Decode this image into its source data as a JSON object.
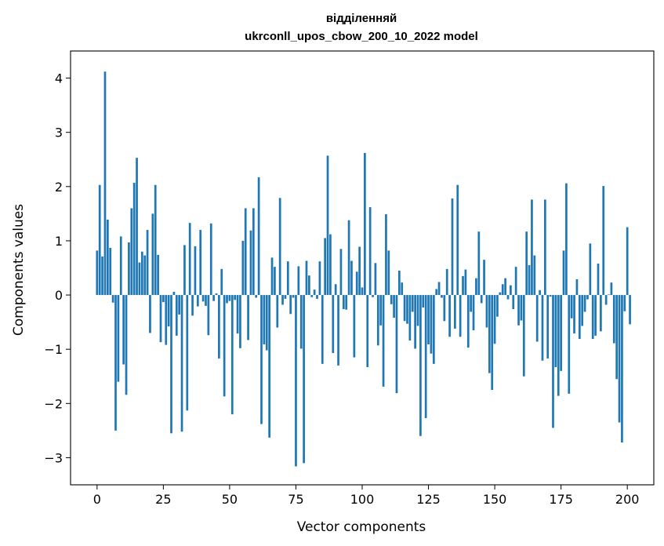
{
  "chart_data": {
    "type": "bar",
    "title_lines": [
      "відділенняй",
      "ukrconll_upos_cbow_200_10_2022 model"
    ],
    "xlabel": "Vector components",
    "ylabel": "Components values",
    "xlim": [
      -10,
      210
    ],
    "ylim": [
      -3.5,
      4.5
    ],
    "x_ticks": [
      0,
      25,
      50,
      75,
      100,
      125,
      150,
      175,
      200
    ],
    "y_ticks": [
      -3,
      -2,
      -1,
      0,
      1,
      2,
      3,
      4
    ],
    "bar_color": "#1f77b4",
    "grid": false,
    "legend": "none",
    "values": [
      0.82,
      2.03,
      0.71,
      4.12,
      1.39,
      0.87,
      -0.14,
      -2.5,
      -1.6,
      1.08,
      -1.28,
      -1.84,
      0.97,
      1.6,
      2.07,
      2.53,
      0.6,
      0.8,
      0.73,
      1.2,
      -0.7,
      1.5,
      2.03,
      0.74,
      -0.87,
      -0.13,
      -0.92,
      -0.58,
      -2.55,
      0.06,
      -0.75,
      -0.36,
      -2.52,
      0.92,
      -2.13,
      1.33,
      -0.38,
      0.9,
      -0.21,
      1.2,
      -0.12,
      -0.2,
      -0.74,
      1.32,
      -0.11,
      0.03,
      -1.17,
      0.48,
      -1.87,
      -0.15,
      -0.11,
      -2.2,
      -0.09,
      -0.71,
      -0.98,
      1.0,
      1.6,
      -0.83,
      1.19,
      1.6,
      -0.05,
      2.17,
      -2.38,
      -0.91,
      -1.02,
      -2.63,
      0.69,
      0.52,
      -0.6,
      1.79,
      -0.18,
      -0.07,
      0.62,
      -0.35,
      -0.05,
      -3.16,
      0.53,
      -0.99,
      -3.1,
      0.63,
      0.36,
      -0.04,
      0.1,
      -0.07,
      0.62,
      -1.27,
      1.05,
      2.57,
      1.12,
      -1.07,
      0.2,
      -1.3,
      0.85,
      -0.26,
      -0.27,
      1.38,
      0.63,
      -1.15,
      0.43,
      0.89,
      0.14,
      2.62,
      -1.33,
      1.62,
      -0.04,
      0.59,
      -0.93,
      -0.56,
      -1.69,
      1.49,
      0.82,
      -0.17,
      -0.42,
      -1.81,
      0.45,
      0.23,
      -0.48,
      -0.53,
      -0.84,
      -0.31,
      -0.99,
      -0.57,
      -2.6,
      -0.23,
      -2.27,
      -0.91,
      -1.08,
      -1.27,
      0.11,
      0.24,
      -0.05,
      -0.48,
      0.48,
      -0.77,
      1.78,
      -0.62,
      2.03,
      -0.77,
      0.35,
      0.47,
      -0.97,
      -0.31,
      -0.65,
      0.31,
      1.17,
      -0.15,
      0.65,
      -0.6,
      -1.44,
      -1.75,
      -0.9,
      -0.4,
      0.05,
      0.2,
      0.31,
      -0.08,
      0.18,
      -0.26,
      0.52,
      -0.56,
      -0.47,
      -1.5,
      1.17,
      0.55,
      1.76,
      0.73,
      -0.86,
      0.09,
      -1.21,
      1.76,
      -1.17,
      -0.03,
      -2.45,
      -1.33,
      -1.86,
      -1.4,
      0.82,
      2.06,
      -1.82,
      -0.43,
      -0.71,
      0.29,
      -0.81,
      -0.57,
      -0.31,
      -0.08,
      0.95,
      -0.81,
      -0.75,
      0.58,
      -0.67,
      2.01,
      -0.18,
      0.01,
      0.23,
      -0.89,
      -1.55,
      -2.35,
      -2.72,
      -0.3,
      1.25,
      -0.54
    ]
  }
}
